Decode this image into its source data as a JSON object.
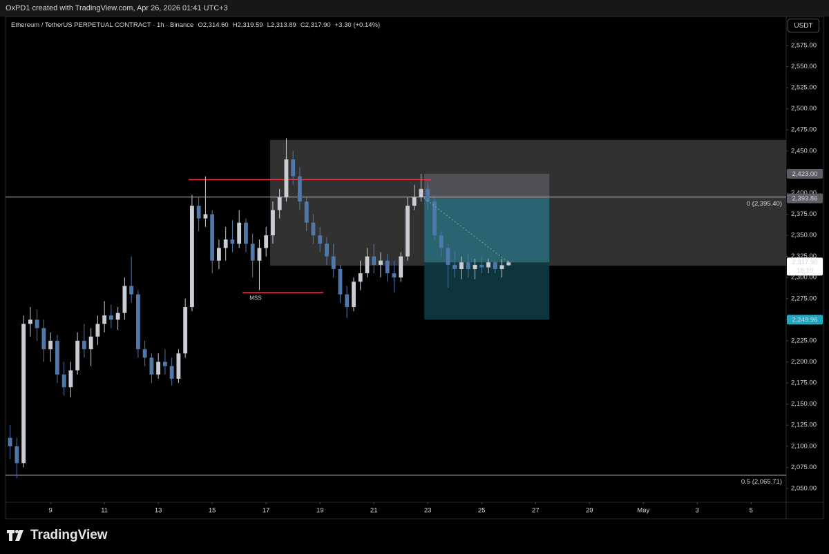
{
  "header": {
    "credit": "OxPD1 created with TradingView.com, Apr 26, 2026 01:41 UTC+3"
  },
  "legend": {
    "symbol": "Ethereum / TetherUS PERPETUAL CONTRACT · 1h · Binance",
    "open": "O2,314.60",
    "high": "H2,319.59",
    "low": "L2,313.89",
    "close": "C2,317.90",
    "change": "+3.30 (+0.14%)"
  },
  "currency_button": "USDT",
  "logo": "TradingView",
  "chart_data": {
    "type": "candlestick",
    "up_color": "#c9ccd3",
    "down_color": "#4f78a8",
    "grid": false,
    "xlim": [
      7.33,
      36.3
    ],
    "ylim": [
      2033.6,
      2609.3
    ],
    "xticks": [
      9,
      11,
      13,
      15,
      17,
      19,
      21,
      23,
      25,
      27,
      29,
      {
        "value": 31,
        "label": "May"
      },
      {
        "value": 33,
        "label": "3"
      },
      {
        "value": 35,
        "label": "5"
      }
    ],
    "yticks": [
      {
        "value": 2050,
        "label": "2,050.00"
      },
      {
        "value": 2075,
        "label": "2,075.00"
      },
      {
        "value": 2100,
        "label": "2,100.00"
      },
      {
        "value": 2125,
        "label": "2,125.00"
      },
      {
        "value": 2150,
        "label": "2,150.00"
      },
      {
        "value": 2175,
        "label": "2,175.00"
      },
      {
        "value": 2200,
        "label": "2,200.00"
      },
      {
        "value": 2225,
        "label": "2,225.00"
      },
      {
        "value": 2250,
        "label": "2,250.00"
      },
      {
        "value": 2275,
        "label": "2,275.00"
      },
      {
        "value": 2300,
        "label": "2,300.00"
      },
      {
        "value": 2325,
        "label": "2,325.00"
      },
      {
        "value": 2350,
        "label": "2,350.00"
      },
      {
        "value": 2375,
        "label": "2,375.00"
      },
      {
        "value": 2400,
        "label": "2,400.00"
      },
      {
        "value": 2425,
        "label": "2,425.00"
      },
      {
        "value": 2450,
        "label": "2,450.00"
      },
      {
        "value": 2475,
        "label": "2,475.00"
      },
      {
        "value": 2500,
        "label": "2,500.00"
      },
      {
        "value": 2525,
        "label": "2,525.00"
      },
      {
        "value": 2550,
        "label": "2,550.00"
      },
      {
        "value": 2575,
        "label": "2,575.00"
      }
    ],
    "x": [
      7.5,
      7.75,
      8,
      8.25,
      8.5,
      8.75,
      9,
      9.25,
      9.5,
      9.75,
      10,
      10.25,
      10.5,
      10.75,
      11,
      11.25,
      11.5,
      11.75,
      12,
      12.25,
      12.5,
      12.75,
      13,
      13.25,
      13.5,
      13.75,
      14,
      14.25,
      14.5,
      14.75,
      15,
      15.25,
      15.5,
      15.75,
      16,
      16.25,
      16.5,
      16.75,
      17,
      17.25,
      17.5,
      17.75,
      18,
      18.25,
      18.5,
      18.75,
      19,
      19.25,
      19.5,
      19.75,
      20,
      20.25,
      20.5,
      20.75,
      21,
      21.25,
      21.5,
      21.75,
      22,
      22.25,
      22.5,
      22.75,
      23,
      23.25,
      23.5,
      23.75,
      24,
      24.25,
      24.5,
      24.75,
      25,
      25.25,
      25.5,
      25.75,
      26
    ],
    "ohlc": [
      [
        2110,
        2125,
        2085,
        2100
      ],
      [
        2100,
        2110,
        2062,
        2080
      ],
      [
        2080,
        2255,
        2075,
        2245
      ],
      [
        2245,
        2265,
        2230,
        2250
      ],
      [
        2250,
        2262,
        2225,
        2240
      ],
      [
        2240,
        2250,
        2200,
        2215
      ],
      [
        2215,
        2235,
        2200,
        2225
      ],
      [
        2225,
        2232,
        2175,
        2185
      ],
      [
        2185,
        2200,
        2160,
        2170
      ],
      [
        2170,
        2200,
        2158,
        2190
      ],
      [
        2190,
        2235,
        2185,
        2225
      ],
      [
        2225,
        2245,
        2205,
        2215
      ],
      [
        2215,
        2240,
        2195,
        2230
      ],
      [
        2230,
        2255,
        2220,
        2245
      ],
      [
        2245,
        2272,
        2235,
        2255
      ],
      [
        2255,
        2268,
        2240,
        2250
      ],
      [
        2250,
        2265,
        2238,
        2258
      ],
      [
        2258,
        2300,
        2250,
        2290
      ],
      [
        2290,
        2325,
        2270,
        2280
      ],
      [
        2280,
        2285,
        2205,
        2215
      ],
      [
        2215,
        2225,
        2195,
        2205
      ],
      [
        2205,
        2210,
        2175,
        2185
      ],
      [
        2185,
        2210,
        2180,
        2200
      ],
      [
        2200,
        2215,
        2185,
        2195
      ],
      [
        2195,
        2205,
        2172,
        2180
      ],
      [
        2180,
        2215,
        2175,
        2210
      ],
      [
        2210,
        2275,
        2205,
        2265
      ],
      [
        2265,
        2398,
        2260,
        2385
      ],
      [
        2385,
        2395,
        2355,
        2370
      ],
      [
        2370,
        2420,
        2360,
        2375
      ],
      [
        2375,
        2380,
        2305,
        2320
      ],
      [
        2320,
        2345,
        2310,
        2335
      ],
      [
        2335,
        2360,
        2320,
        2345
      ],
      [
        2345,
        2368,
        2330,
        2340
      ],
      [
        2340,
        2380,
        2335,
        2365
      ],
      [
        2365,
        2370,
        2330,
        2340
      ],
      [
        2340,
        2352,
        2300,
        2320
      ],
      [
        2320,
        2345,
        2285,
        2335
      ],
      [
        2335,
        2360,
        2325,
        2350
      ],
      [
        2350,
        2390,
        2340,
        2380
      ],
      [
        2380,
        2405,
        2370,
        2395
      ],
      [
        2395,
        2465,
        2390,
        2440
      ],
      [
        2440,
        2450,
        2410,
        2420
      ],
      [
        2420,
        2430,
        2380,
        2390
      ],
      [
        2390,
        2395,
        2355,
        2365
      ],
      [
        2365,
        2375,
        2340,
        2350
      ],
      [
        2350,
        2360,
        2330,
        2340
      ],
      [
        2340,
        2348,
        2315,
        2325
      ],
      [
        2325,
        2340,
        2300,
        2310
      ],
      [
        2310,
        2315,
        2270,
        2280
      ],
      [
        2280,
        2290,
        2252,
        2265
      ],
      [
        2265,
        2300,
        2260,
        2295
      ],
      [
        2295,
        2320,
        2285,
        2305
      ],
      [
        2305,
        2335,
        2300,
        2325
      ],
      [
        2325,
        2340,
        2305,
        2315
      ],
      [
        2315,
        2330,
        2300,
        2320
      ],
      [
        2320,
        2328,
        2295,
        2305
      ],
      [
        2305,
        2320,
        2282,
        2300
      ],
      [
        2300,
        2330,
        2295,
        2325
      ],
      [
        2325,
        2395,
        2320,
        2385
      ],
      [
        2385,
        2410,
        2380,
        2395
      ],
      [
        2395,
        2423,
        2390,
        2405
      ],
      [
        2405,
        2412,
        2380,
        2390
      ],
      [
        2390,
        2395,
        2345,
        2350
      ],
      [
        2350,
        2355,
        2325,
        2335
      ],
      [
        2335,
        2340,
        2288,
        2315
      ],
      [
        2315,
        2330,
        2300,
        2310
      ],
      [
        2310,
        2325,
        2298,
        2318
      ],
      [
        2318,
        2328,
        2300,
        2310
      ],
      [
        2310,
        2322,
        2298,
        2315
      ],
      [
        2315,
        2325,
        2305,
        2312
      ],
      [
        2312,
        2322,
        2305,
        2318
      ],
      [
        2318,
        2320,
        2305,
        2310
      ],
      [
        2310,
        2322,
        2300,
        2314.6
      ],
      [
        2314.6,
        2319.59,
        2313.89,
        2317.9
      ]
    ],
    "zone": {
      "x_start": 17.15,
      "high": 2463,
      "low": 2314,
      "color": "#3a3a3a"
    },
    "position": {
      "x_start": 22.87,
      "x_end": 27.51,
      "stop": {
        "value": 2423,
        "label": "2,423.00"
      },
      "entry": {
        "value": 2393.86,
        "label": "2,393.86"
      },
      "target": {
        "value": 2249.96,
        "label": "2,249.96"
      }
    },
    "levels": [
      {
        "x_start": 14.13,
        "x_end": 23.13,
        "value": 2416,
        "color": "#f23645"
      },
      {
        "x_start": 16.13,
        "x_end": 19.13,
        "value": 2282,
        "color": "#f23645",
        "label": "MSS"
      }
    ],
    "fib": [
      {
        "value": 2395.4,
        "label": "0 (2,395.40)"
      },
      {
        "value": 2065.71,
        "label": "0.5 (2,065.71)"
      }
    ],
    "last_price": {
      "value": 2317.9,
      "label": "2,317.90",
      "countdown": "18:10"
    }
  }
}
